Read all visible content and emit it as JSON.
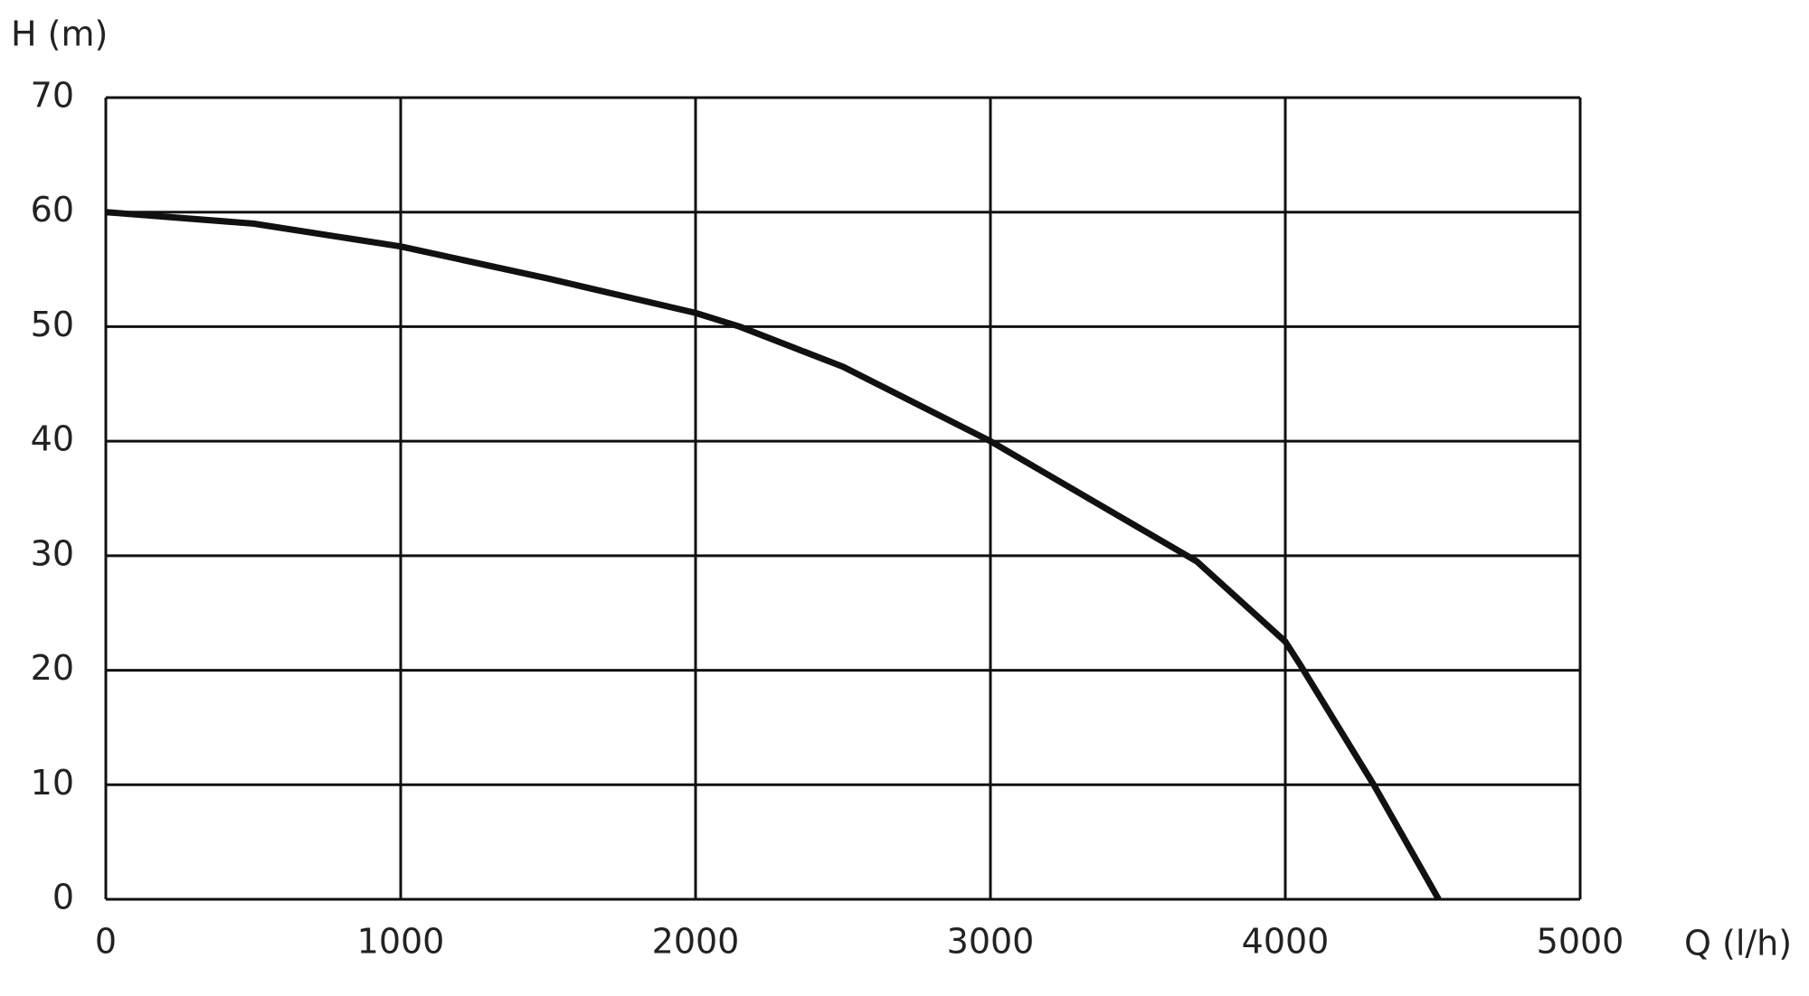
{
  "chart_data": {
    "type": "line",
    "x_label": "Q (l/h)",
    "y_label": "H (m)",
    "x": [
      0,
      500,
      1000,
      1500,
      2000,
      2150,
      2500,
      3000,
      3500,
      3700,
      4000,
      4050,
      4300,
      4520
    ],
    "series": [
      {
        "name": "H",
        "color": "#111111",
        "values": [
          60,
          59,
          57,
          54.2,
          51.2,
          50,
          46.5,
          40,
          32.5,
          29.5,
          22.5,
          20.5,
          10,
          0
        ]
      }
    ],
    "xlim": [
      0,
      5000
    ],
    "xticks": [
      0,
      1000,
      2000,
      3000,
      4000,
      5000
    ],
    "ylim": [
      0,
      70
    ],
    "yticks": [
      0,
      10,
      20,
      30,
      40,
      50,
      60,
      70
    ],
    "grid": true
  }
}
